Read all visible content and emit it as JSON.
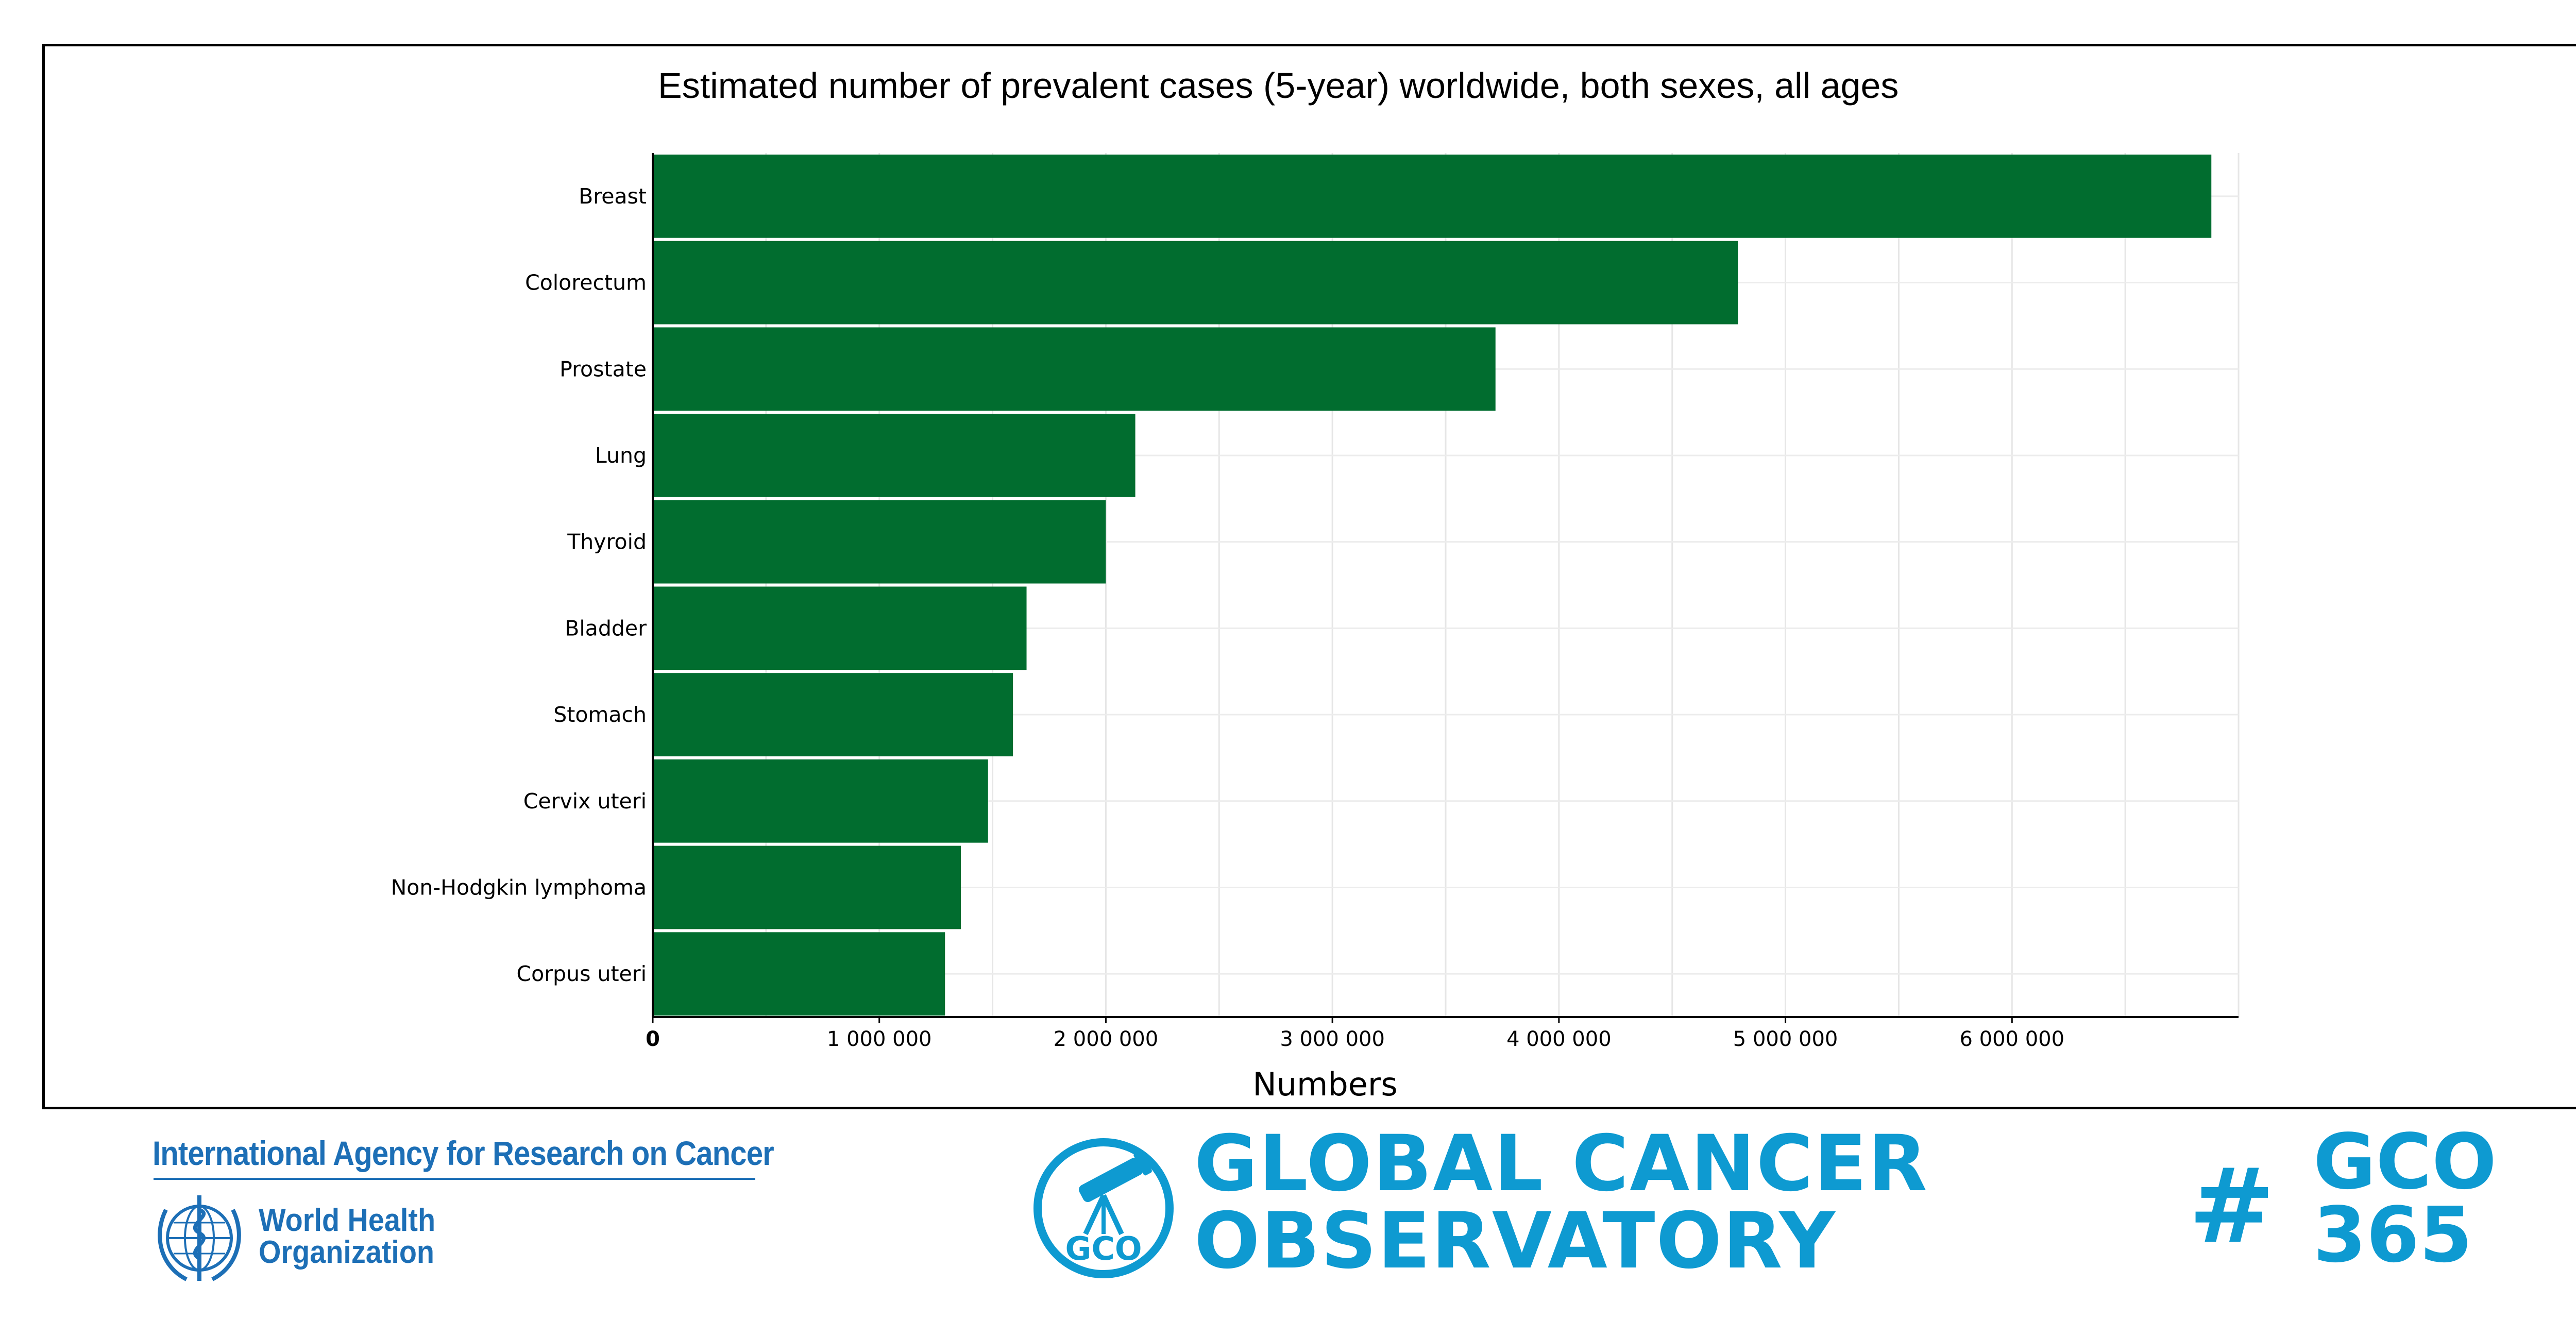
{
  "chart_data": {
    "type": "bar",
    "orientation": "horizontal",
    "title": "Estimated number of prevalent cases (5-year) worldwide, both sexes, all ages",
    "xlabel": "Numbers",
    "ylabel": "",
    "xlim": [
      0,
      7000000
    ],
    "x_ticks": [
      0,
      1000000,
      2000000,
      3000000,
      4000000,
      5000000,
      6000000
    ],
    "x_tick_labels": [
      "0",
      "1 000 000",
      "2 000 000",
      "3 000 000",
      "4 000 000",
      "5 000 000",
      "6 000 000"
    ],
    "grid": true,
    "bar_color": "#016d2f",
    "categories": [
      "Breast",
      "Colorectum",
      "Prostate",
      "Lung",
      "Thyroid",
      "Bladder",
      "Stomach",
      "Cervix uteri",
      "Non-Hodgkin lymphoma",
      "Corpus uteri"
    ],
    "values": [
      6880000,
      4790000,
      3720000,
      2130000,
      2000000,
      1650000,
      1590000,
      1480000,
      1360000,
      1290000
    ]
  },
  "footer": {
    "iarc": "International Agency for Research on Cancer",
    "who_line1": "World Health",
    "who_line2": "Organization",
    "gco_badge": "GCO",
    "gco_line1": "GLOBAL CANCER",
    "gco_line2": "OBSERVATORY",
    "hash": "#",
    "gco365_line1": "GCO",
    "gco365_line2": "365",
    "iarc_color": "#1d6fb6",
    "gco_color": "#0e9ad1"
  }
}
